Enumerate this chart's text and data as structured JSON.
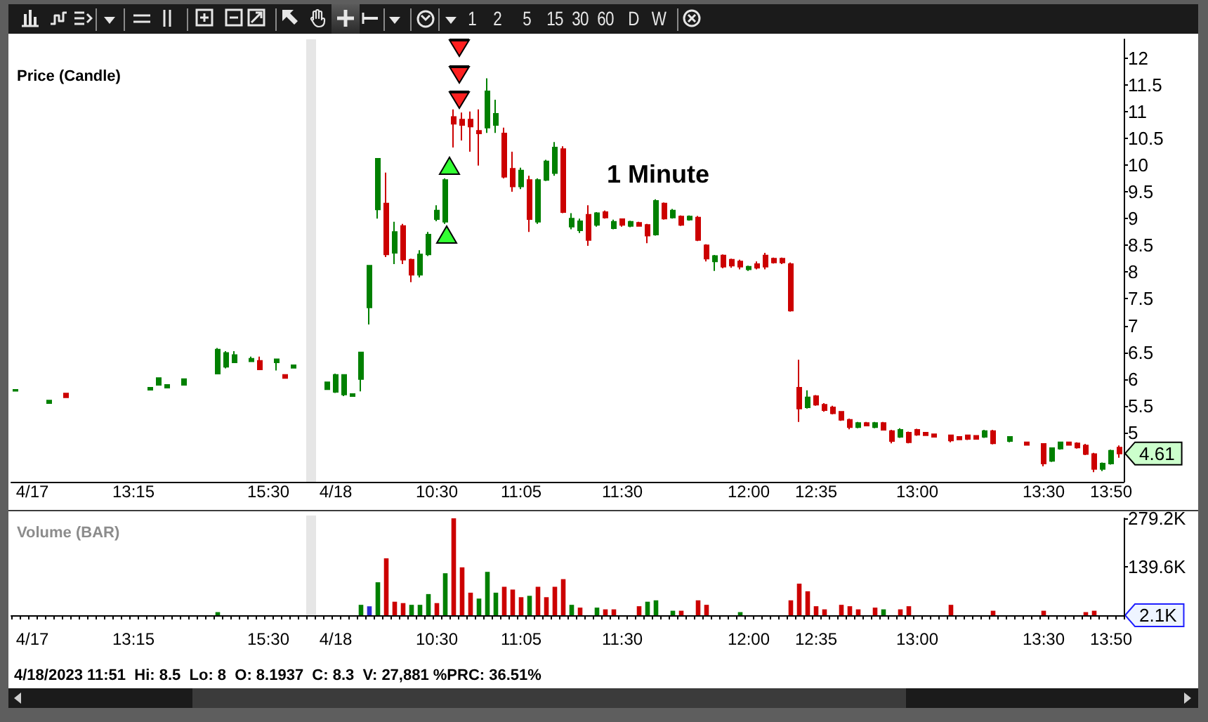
{
  "chart_data": [
    {
      "type": "candlestick",
      "title": "Price (Candle)",
      "subtitle": "1 Minute",
      "categories": [
        null,
        null,
        "4/17",
        null,
        null,
        null,
        null,
        null,
        null,
        null,
        null,
        null,
        null,
        null,
        "13:15",
        null,
        null,
        null,
        null,
        null,
        null,
        null,
        null,
        null,
        null,
        null,
        null,
        null,
        null,
        null,
        "15:30",
        null,
        null,
        null,
        null,
        null,
        null,
        null,
        "4/18",
        null,
        null,
        null,
        null,
        null,
        null,
        null,
        null,
        null,
        null,
        null,
        "10:30",
        null,
        null,
        null,
        null,
        null,
        null,
        null,
        null,
        null,
        "11:05",
        null,
        null,
        null,
        null,
        null,
        null,
        null,
        null,
        null,
        null,
        null,
        "11:30",
        null,
        null,
        null,
        null,
        null,
        null,
        null,
        null,
        null,
        null,
        null,
        null,
        null,
        null,
        "12:00",
        null,
        null,
        null,
        null,
        null,
        null,
        null,
        "12:35",
        null,
        null,
        null,
        null,
        null,
        null,
        null,
        null,
        null,
        null,
        null,
        "13:00",
        null,
        null,
        null,
        null,
        null,
        null,
        null,
        null,
        null,
        null,
        null,
        null,
        null,
        null,
        "13:30",
        null,
        null,
        null,
        null,
        null,
        null,
        null,
        "13:50",
        null
      ],
      "ohlc": [
        [
          5.78,
          5.8,
          5.78,
          5.8
        ],
        null,
        null,
        null,
        [
          5.55,
          5.6,
          5.55,
          5.6
        ],
        null,
        [
          5.73,
          5.73,
          5.66,
          5.66
        ],
        null,
        null,
        null,
        null,
        null,
        null,
        null,
        null,
        null,
        [
          5.8,
          5.84,
          5.8,
          5.84
        ],
        [
          5.89,
          6.02,
          5.89,
          6.02
        ],
        [
          5.84,
          5.89,
          5.84,
          5.89
        ],
        null,
        [
          5.89,
          6.0,
          5.89,
          6.0
        ],
        null,
        null,
        null,
        [
          6.1,
          6.58,
          6.1,
          6.55
        ],
        [
          6.23,
          6.52,
          6.2,
          6.49
        ],
        [
          6.31,
          6.52,
          6.3,
          6.45
        ],
        null,
        [
          6.33,
          6.42,
          6.32,
          6.38
        ],
        [
          6.34,
          6.42,
          6.18,
          6.18
        ],
        null,
        [
          6.31,
          6.37,
          6.16,
          6.37
        ],
        [
          6.08,
          6.08,
          6.02,
          6.02
        ],
        [
          6.21,
          6.26,
          6.21,
          6.26
        ],
        null,
        null,
        null,
        [
          5.81,
          5.95,
          5.8,
          5.94
        ],
        [
          5.76,
          6.1,
          5.74,
          6.08
        ],
        [
          5.71,
          6.08,
          5.68,
          6.08
        ],
        [
          5.68,
          5.73,
          5.67,
          5.72
        ],
        [
          6.0,
          6.5,
          5.77,
          6.5
        ],
        [
          7.34,
          8.12,
          7.02,
          8.12
        ],
        [
          9.17,
          10.12,
          9.0,
          10.12
        ],
        [
          9.28,
          9.86,
          8.28,
          8.33
        ],
        [
          8.36,
          8.94,
          8.15,
          8.75
        ],
        [
          8.86,
          8.9,
          8.15,
          8.23
        ],
        [
          8.23,
          8.25,
          7.81,
          7.95
        ],
        [
          7.95,
          8.41,
          7.9,
          8.33
        ],
        [
          8.33,
          8.75,
          8.3,
          8.7
        ],
        [
          8.99,
          9.25,
          8.95,
          9.15
        ],
        [
          8.94,
          9.75,
          8.9,
          9.72
        ],
        [
          10.9,
          11.04,
          10.33,
          10.77
        ],
        [
          10.85,
          10.98,
          10.46,
          10.75
        ],
        [
          10.85,
          11.0,
          10.25,
          10.72
        ],
        [
          10.64,
          11.04,
          9.99,
          10.59
        ],
        [
          10.7,
          11.62,
          10.6,
          11.38
        ],
        [
          10.75,
          11.22,
          10.6,
          10.96
        ],
        [
          10.59,
          10.7,
          9.75,
          9.78
        ],
        [
          9.93,
          10.25,
          9.5,
          9.6
        ],
        [
          9.6,
          9.95,
          9.55,
          9.9
        ],
        [
          9.72,
          9.8,
          8.75,
          8.99
        ],
        [
          8.94,
          9.75,
          8.9,
          9.72
        ],
        [
          9.72,
          10.1,
          9.7,
          10.07
        ],
        [
          9.85,
          10.43,
          9.8,
          10.33
        ],
        [
          10.3,
          10.35,
          9.1,
          9.12
        ],
        [
          8.85,
          9.1,
          8.8,
          9.0
        ],
        [
          8.78,
          9.0,
          8.73,
          8.95
        ],
        [
          9.07,
          9.25,
          8.49,
          8.6
        ],
        [
          8.88,
          9.12,
          8.85,
          9.1
        ],
        [
          9.12,
          9.15,
          9.0,
          9.02
        ],
        [
          8.82,
          8.98,
          8.8,
          8.94
        ],
        [
          8.99,
          9.0,
          8.85,
          8.88
        ],
        [
          8.86,
          8.96,
          8.84,
          8.94
        ],
        [
          8.92,
          8.94,
          8.85,
          8.86
        ],
        [
          8.88,
          8.9,
          8.54,
          8.68
        ],
        [
          8.7,
          9.36,
          8.68,
          9.33
        ],
        [
          9.28,
          9.3,
          8.98,
          9.0
        ],
        [
          9.02,
          9.18,
          9.0,
          9.15
        ],
        [
          9.04,
          9.06,
          8.86,
          8.88
        ],
        [
          8.98,
          9.06,
          8.96,
          9.04
        ],
        [
          9.02,
          9.05,
          8.58,
          8.6
        ],
        [
          8.5,
          8.52,
          8.2,
          8.25
        ],
        [
          8.2,
          8.32,
          8.02,
          8.3
        ],
        [
          8.31,
          8.33,
          8.07,
          8.1
        ],
        [
          8.23,
          8.25,
          8.08,
          8.12
        ],
        [
          8.2,
          8.23,
          8.05,
          8.1
        ],
        [
          8.05,
          8.12,
          8.02,
          8.1
        ],
        [
          8.15,
          8.2,
          8.05,
          8.08
        ],
        [
          8.31,
          8.36,
          8.05,
          8.1
        ],
        [
          8.25,
          8.27,
          8.16,
          8.18
        ],
        [
          8.25,
          8.27,
          8.15,
          8.18
        ],
        [
          8.15,
          8.18,
          7.26,
          7.28
        ],
        [
          5.84,
          6.36,
          5.2,
          5.45
        ],
        [
          5.47,
          5.79,
          5.45,
          5.66
        ],
        [
          5.68,
          5.7,
          5.5,
          5.52
        ],
        [
          5.52,
          5.55,
          5.39,
          5.42
        ],
        [
          5.47,
          5.5,
          5.34,
          5.36
        ],
        [
          5.39,
          5.4,
          5.22,
          5.24
        ],
        [
          5.24,
          5.26,
          5.06,
          5.1
        ],
        [
          5.1,
          5.2,
          5.08,
          5.18
        ],
        [
          5.18,
          5.2,
          5.12,
          5.13
        ],
        [
          5.1,
          5.2,
          5.08,
          5.18
        ],
        [
          5.18,
          5.2,
          5.04,
          5.05
        ],
        [
          5.03,
          5.05,
          4.8,
          4.84
        ],
        [
          4.92,
          5.08,
          4.9,
          5.05
        ],
        [
          5.0,
          5.02,
          4.8,
          4.82
        ],
        [
          5.05,
          5.07,
          4.94,
          4.96
        ],
        [
          5.0,
          5.01,
          4.94,
          4.95
        ],
        [
          4.97,
          4.98,
          4.91,
          4.92
        ],
        null,
        [
          4.95,
          4.96,
          4.82,
          4.85
        ],
        [
          4.92,
          4.93,
          4.86,
          4.87
        ],
        [
          4.95,
          4.96,
          4.86,
          4.88
        ],
        [
          4.94,
          4.95,
          4.87,
          4.88
        ],
        [
          4.92,
          5.05,
          4.9,
          5.03
        ],
        [
          5.03,
          5.05,
          4.78,
          4.8
        ],
        null,
        [
          4.84,
          4.93,
          4.82,
          4.92
        ],
        null,
        [
          4.82,
          4.83,
          4.76,
          4.77
        ],
        null,
        [
          4.79,
          4.8,
          4.37,
          4.42
        ],
        [
          4.47,
          4.72,
          4.45,
          4.71
        ],
        [
          4.7,
          4.83,
          4.68,
          4.82
        ],
        [
          4.82,
          4.83,
          4.76,
          4.77
        ],
        [
          4.8,
          4.82,
          4.7,
          4.72
        ],
        [
          4.76,
          4.79,
          4.58,
          4.6
        ],
        [
          4.6,
          4.62,
          4.26,
          4.32
        ],
        [
          4.32,
          4.44,
          4.28,
          4.42
        ],
        [
          4.42,
          4.68,
          4.4,
          4.66
        ],
        [
          4.72,
          4.76,
          4.53,
          4.61
        ]
      ],
      "colors": [
        "#008000",
        null,
        null,
        null,
        "#008000",
        null,
        "#cc0000",
        null,
        null,
        null,
        null,
        null,
        null,
        null,
        null,
        null,
        "#008000",
        "#008000",
        "#008000",
        null,
        "#008000",
        null,
        null,
        null,
        "#008000",
        "#008000",
        "#008000",
        null,
        "#008000",
        "#cc0000",
        null,
        "#008000",
        "#cc0000",
        "#008000",
        null,
        null,
        null,
        "#008000",
        "#008000",
        "#008000",
        "#008000",
        "#008000",
        "#008000",
        "#008000",
        "#cc0000",
        "#008000",
        "#cc0000",
        "#cc0000",
        "#008000",
        "#008000",
        "#008000",
        "#008000",
        "#cc0000",
        "#cc0000",
        "#cc0000",
        "#cc0000",
        "#008000",
        "#008000",
        "#cc0000",
        "#cc0000",
        "#008000",
        "#cc0000",
        "#008000",
        "#008000",
        "#008000",
        "#cc0000",
        "#008000",
        "#008000",
        "#cc0000",
        "#008000",
        "#cc0000",
        "#008000",
        "#cc0000",
        "#008000",
        "#cc0000",
        "#cc0000",
        "#008000",
        "#cc0000",
        "#008000",
        "#cc0000",
        "#008000",
        "#cc0000",
        "#cc0000",
        "#008000",
        "#cc0000",
        "#cc0000",
        "#cc0000",
        "#008000",
        "#cc0000",
        "#cc0000",
        "#cc0000",
        "#cc0000",
        "#cc0000",
        "#cc0000",
        "#008000",
        "#cc0000",
        "#cc0000",
        "#cc0000",
        "#cc0000",
        "#cc0000",
        "#008000",
        "#cc0000",
        "#008000",
        "#cc0000",
        "#cc0000",
        "#008000",
        "#cc0000",
        "#cc0000",
        "#cc0000",
        "#cc0000",
        null,
        "#cc0000",
        "#cc0000",
        "#cc0000",
        "#cc0000",
        "#008000",
        "#cc0000",
        null,
        "#008000",
        null,
        "#cc0000",
        null,
        "#cc0000",
        "#008000",
        "#008000",
        "#cc0000",
        "#cc0000",
        "#cc0000",
        "#cc0000",
        "#008000",
        "#008000",
        "#cc0000"
      ],
      "ylim": [
        4.08,
        12.35
      ],
      "yticks": [
        5,
        5.5,
        6,
        6.5,
        7,
        7.5,
        8,
        8.5,
        9,
        9.5,
        10,
        10.5,
        11,
        11.5,
        12
      ],
      "annotations": [
        "4.61",
        "1",
        "2",
        "5",
        "15",
        "30",
        "60",
        "D",
        "W"
      ]
    },
    {
      "type": "bar",
      "title": "Volume (BAR)",
      "categories": [
        null,
        null,
        "4/17",
        null,
        null,
        null,
        null,
        null,
        null,
        null,
        null,
        null,
        null,
        null,
        "13:15",
        null,
        null,
        null,
        null,
        null,
        null,
        null,
        null,
        null,
        null,
        null,
        null,
        null,
        null,
        null,
        "15:30",
        null,
        null,
        null,
        null,
        null,
        null,
        null,
        "4/18",
        null,
        null,
        null,
        null,
        null,
        null,
        null,
        null,
        null,
        null,
        null,
        "10:30",
        null,
        null,
        null,
        null,
        null,
        null,
        null,
        null,
        null,
        "11:05",
        null,
        null,
        null,
        null,
        null,
        null,
        null,
        null,
        null,
        null,
        null,
        "11:30",
        null,
        null,
        null,
        null,
        null,
        null,
        null,
        null,
        null,
        null,
        null,
        null,
        null,
        null,
        "12:00",
        null,
        null,
        null,
        null,
        null,
        null,
        null,
        "12:35",
        null,
        null,
        null,
        null,
        null,
        null,
        null,
        null,
        null,
        null,
        null,
        "13:00",
        null,
        null,
        null,
        null,
        null,
        null,
        null,
        null,
        null,
        null,
        null,
        null,
        null,
        null,
        "13:30",
        null,
        null,
        null,
        null,
        null,
        null,
        null,
        "13:50",
        null
      ],
      "values": [
        null,
        null,
        null,
        null,
        null,
        null,
        null,
        null,
        null,
        null,
        null,
        null,
        null,
        null,
        null,
        null,
        null,
        null,
        null,
        null,
        null,
        null,
        null,
        null,
        9,
        null,
        null,
        null,
        null,
        null,
        null,
        null,
        null,
        null,
        null,
        null,
        null,
        null,
        null,
        null,
        null,
        30,
        26,
        95,
        164,
        39,
        35,
        30,
        30,
        61,
        35,
        121,
        279,
        138,
        65,
        48,
        125,
        65,
        82,
        74,
        52,
        56,
        82,
        52,
        82,
        104,
        30,
        22,
        null,
        22,
        17,
        17,
        null,
        null,
        26,
        39,
        43,
        null,
        13,
        13,
        null,
        43,
        30,
        null,
        null,
        null,
        9,
        null,
        null,
        null,
        null,
        null,
        43,
        91,
        69,
        26,
        17,
        null,
        30,
        26,
        17,
        null,
        22,
        17,
        null,
        17,
        26,
        null,
        null,
        null,
        null,
        30,
        null,
        null,
        null,
        null,
        13,
        null,
        null,
        null,
        null,
        null,
        13,
        null,
        null,
        null,
        null,
        9,
        13,
        null,
        null,
        null
      ],
      "colors": [
        null,
        null,
        null,
        null,
        null,
        null,
        null,
        null,
        null,
        null,
        null,
        null,
        null,
        null,
        null,
        null,
        null,
        null,
        null,
        null,
        null,
        null,
        null,
        null,
        "#008000",
        null,
        null,
        null,
        null,
        null,
        null,
        null,
        null,
        null,
        null,
        null,
        null,
        null,
        null,
        null,
        null,
        "#008000",
        "#2b2bd0",
        "#008000",
        "#cc0000",
        "#cc0000",
        "#cc0000",
        "#008000",
        "#008000",
        "#008000",
        "#cc0000",
        "#008000",
        "#cc0000",
        "#cc0000",
        "#cc0000",
        "#008000",
        "#008000",
        "#008000",
        "#cc0000",
        "#cc0000",
        "#cc0000",
        "#008000",
        "#cc0000",
        "#cc0000",
        "#cc0000",
        "#cc0000",
        "#008000",
        "#cc0000",
        null,
        "#008000",
        "#cc0000",
        "#cc0000",
        null,
        null,
        "#cc0000",
        "#008000",
        "#008000",
        null,
        "#008000",
        "#cc0000",
        null,
        "#cc0000",
        "#cc0000",
        null,
        null,
        null,
        "#008000",
        null,
        null,
        null,
        null,
        null,
        "#cc0000",
        "#cc0000",
        "#cc0000",
        "#cc0000",
        "#cc0000",
        null,
        "#cc0000",
        "#cc0000",
        "#cc0000",
        null,
        "#cc0000",
        "#008000",
        null,
        "#cc0000",
        "#cc0000",
        null,
        null,
        null,
        null,
        "#cc0000",
        null,
        null,
        null,
        null,
        "#cc0000",
        null,
        null,
        null,
        null,
        null,
        "#cc0000",
        null,
        null,
        null,
        null,
        "#cc0000",
        "#cc0000",
        null,
        null,
        null
      ],
      "ylim": [
        0,
        279.2
      ],
      "yticks": [
        {
          "value": 139.6,
          "label": "139.6K"
        },
        {
          "value": 279.2,
          "label": "279.2K"
        }
      ],
      "annotations": [
        "2.1K",
        "4/18/2023 11:51  Hi: 8.5  Lo: 8  O: 8.1937  C: 8.3  V: 27,881 %PRC: 36.51%"
      ]
    }
  ]
}
